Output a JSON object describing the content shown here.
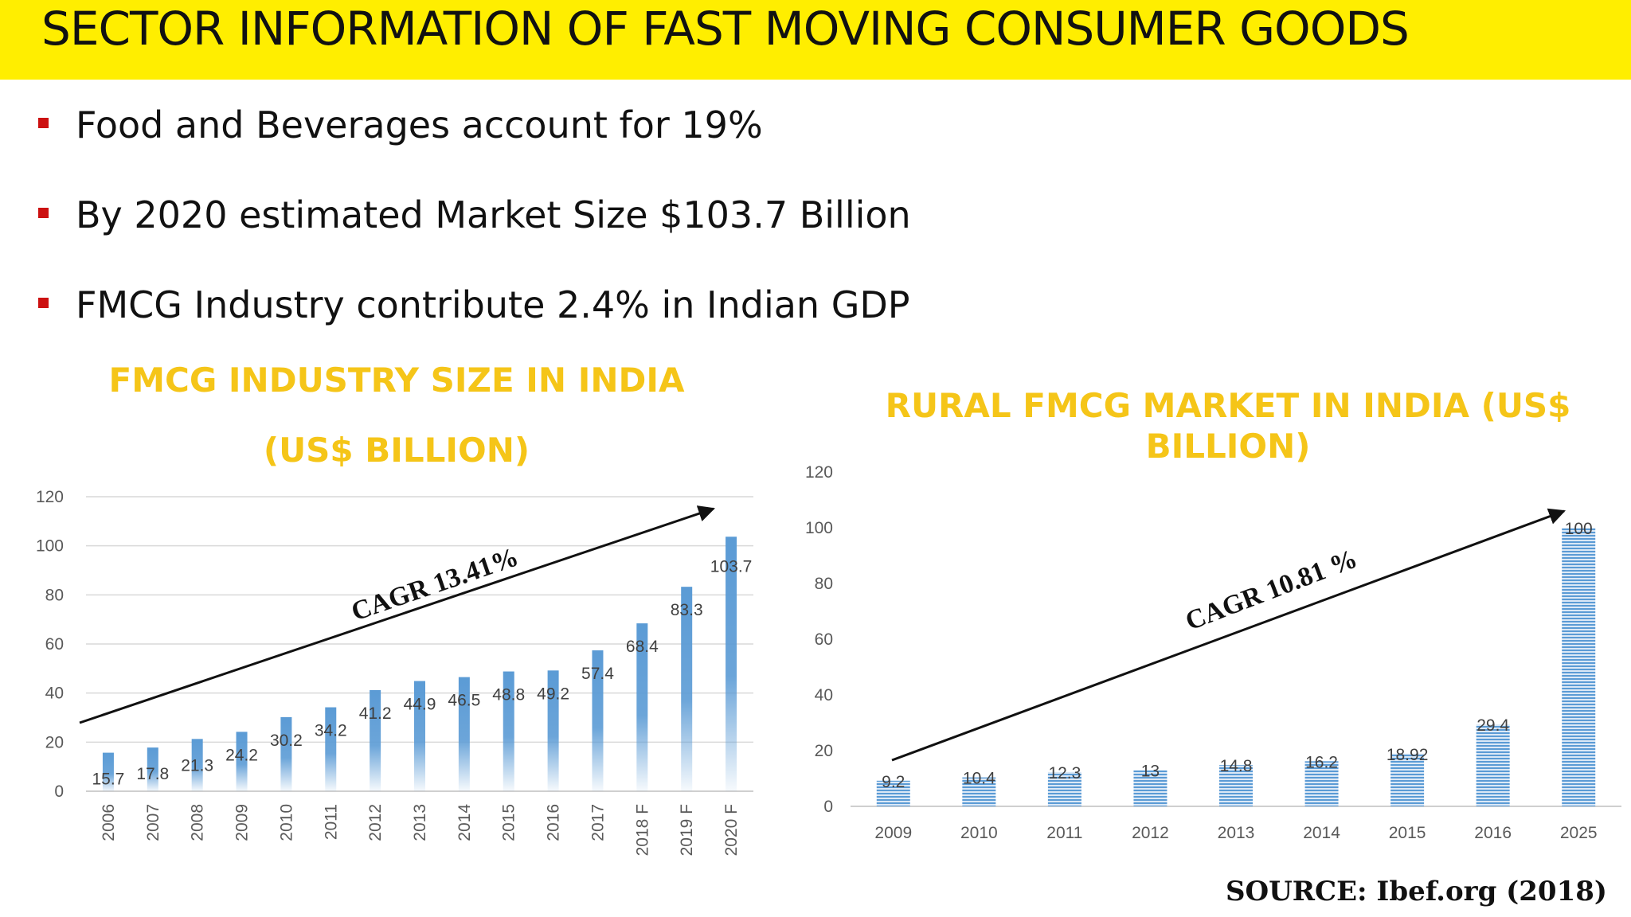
{
  "title": "SECTOR INFORMATION OF FAST MOVING CONSUMER GOODS",
  "bullets": [
    "Food and Beverages account for 19%",
    "By 2020 estimated Market Size $103.7 Billion",
    "FMCG Industry contribute 2.4% in Indian GDP"
  ],
  "source": "SOURCE: Ibef.org (2018)",
  "colors": {
    "title_bar": "#ffee00",
    "chart_title": "#f5c518",
    "bar": "#5b9bd5",
    "bullet_marker": "#cc1111"
  },
  "chart_data": [
    {
      "type": "bar",
      "title_lines": [
        "FMCG INDUSTRY SIZE IN INDIA",
        "(US$ BILLION)"
      ],
      "categories": [
        "2006",
        "2007",
        "2008",
        "2009",
        "2010",
        "2011",
        "2012",
        "2013",
        "2014",
        "2015",
        "2016",
        "2017",
        "2018 F",
        "2019 F",
        "2020 F"
      ],
      "values": [
        15.7,
        17.8,
        21.3,
        24.2,
        30.2,
        34.2,
        41.2,
        44.9,
        46.5,
        48.8,
        49.2,
        57.4,
        68.4,
        83.3,
        103.7
      ],
      "data_labels": [
        "15.7",
        "17.8",
        "21.3",
        "24.2",
        "30.2",
        "34.2",
        "41.2",
        "44.9",
        "46.5",
        "48.8",
        "49.2",
        "57.4",
        "68.4",
        "83.3",
        "103.7"
      ],
      "ylim": [
        0,
        120
      ],
      "yticks": [
        0,
        20,
        40,
        60,
        80,
        100,
        120
      ],
      "grid": true,
      "x_labels_rotated": true,
      "annotation": "CAGR 13.41%",
      "bar_style": "gradient-fade"
    },
    {
      "type": "bar",
      "title_lines": [
        "RURAL FMCG MARKET IN INDIA (US$",
        "BILLION)"
      ],
      "categories": [
        "2009",
        "2010",
        "2011",
        "2012",
        "2013",
        "2014",
        "2015",
        "2016",
        "2025"
      ],
      "values": [
        9.2,
        10.4,
        12.3,
        13,
        14.8,
        16.2,
        18.92,
        29.4,
        100
      ],
      "data_labels": [
        "9.2",
        "10.4",
        "12.3",
        "13",
        "14.8",
        "16.2",
        "18.92",
        "29.4",
        "100"
      ],
      "ylim": [
        0,
        120
      ],
      "yticks": [
        0,
        20,
        40,
        60,
        80,
        100,
        120
      ],
      "grid": false,
      "x_labels_rotated": false,
      "annotation": "CAGR 10.81 %",
      "bar_style": "striped"
    }
  ]
}
